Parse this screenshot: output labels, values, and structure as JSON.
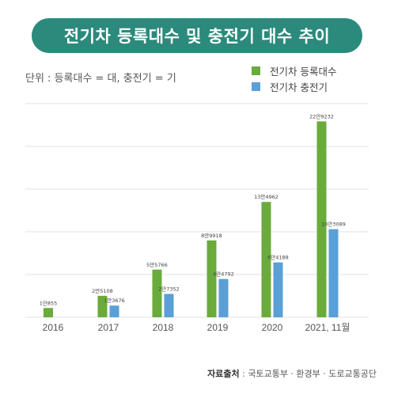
{
  "header": {
    "title": "전기차 등록대수 및 충전기 대수 추이"
  },
  "unit_note": "단위 : 등록대수 = 대, 충전기 = 기",
  "source": {
    "label": "자료출처",
    "text": " : 국토교통부 · 환경부 · 도로교통공단"
  },
  "colors": {
    "header_bg": "#2b8a7b",
    "series_registrations": "#6aab3b",
    "series_chargers": "#5a9fd6"
  },
  "chart_data": {
    "type": "bar",
    "categories": [
      "2016",
      "2017",
      "2018",
      "2019",
      "2020",
      "2021, 11월"
    ],
    "series": [
      {
        "name": "전기차 등록대수",
        "color": "#6aab3b",
        "values": [
          10855,
          25108,
          55766,
          89918,
          134962,
          229232
        ],
        "labels": [
          "1만855",
          "2만5108",
          "5만5766",
          "8만9918",
          "13만4962",
          "22만9232"
        ]
      },
      {
        "name": "전기차 충전기",
        "color": "#5a9fd6",
        "values": [
          null,
          13676,
          27352,
          44792,
          64188,
          103089
        ],
        "labels": [
          null,
          "1만3676",
          "2만7352",
          "4만4792",
          "6만4188",
          "10만3089"
        ]
      }
    ],
    "ylim": [
      0,
      250000
    ],
    "grid": true,
    "legend": "top-right"
  }
}
